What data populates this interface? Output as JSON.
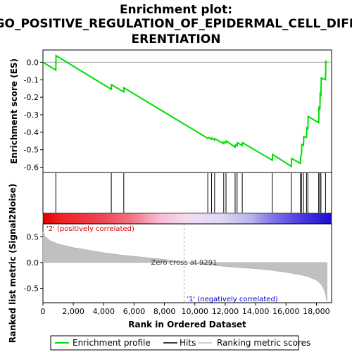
{
  "chart_data": {
    "type": "line",
    "title_lines": [
      "Enrichment plot:",
      "GO_POSITIVE_REGULATION_OF_EPIDERMAL_CELL_DIFF",
      "ERENTIATION"
    ],
    "xlabel": "Rank in Ordered Dataset",
    "es_panel": {
      "ylabel": "Enrichment score (ES)",
      "ylim": [
        -0.63,
        0.07
      ],
      "yticks": [
        0.0,
        -0.1,
        -0.2,
        -0.3,
        -0.4,
        -0.5,
        -0.6
      ],
      "ytick_labels": [
        "0.0",
        "-0.1",
        "-0.2",
        "-0.3",
        "-0.4",
        "-0.5",
        "-0.6"
      ],
      "series": [
        {
          "name": "Enrichment profile",
          "color": "#00dd00",
          "points": [
            [
              0,
              0.0
            ],
            [
              850,
              -0.045
            ],
            [
              860,
              0.038
            ],
            [
              4500,
              -0.155
            ],
            [
              4510,
              -0.128
            ],
            [
              5320,
              -0.17
            ],
            [
              5330,
              -0.146
            ],
            [
              10850,
              -0.435
            ],
            [
              10900,
              -0.43
            ],
            [
              11100,
              -0.44
            ],
            [
              11130,
              -0.433
            ],
            [
              11300,
              -0.445
            ],
            [
              11320,
              -0.437
            ],
            [
              11900,
              -0.465
            ],
            [
              11920,
              -0.455
            ],
            [
              12050,
              -0.46
            ],
            [
              12070,
              -0.45
            ],
            [
              12650,
              -0.485
            ],
            [
              12670,
              -0.472
            ],
            [
              12780,
              -0.478
            ],
            [
              12800,
              -0.46
            ],
            [
              13120,
              -0.475
            ],
            [
              13140,
              -0.46
            ],
            [
              15100,
              -0.56
            ],
            [
              15120,
              -0.527
            ],
            [
              16350,
              -0.595
            ],
            [
              16370,
              -0.55
            ],
            [
              16950,
              -0.578
            ],
            [
              16970,
              -0.535
            ],
            [
              17020,
              -0.53
            ],
            [
              17040,
              -0.47
            ],
            [
              17150,
              -0.475
            ],
            [
              17170,
              -0.425
            ],
            [
              17350,
              -0.43
            ],
            [
              17370,
              -0.375
            ],
            [
              17440,
              -0.38
            ],
            [
              17460,
              -0.31
            ],
            [
              18150,
              -0.345
            ],
            [
              18170,
              -0.26
            ],
            [
              18230,
              -0.265
            ],
            [
              18250,
              -0.18
            ],
            [
              18300,
              -0.185
            ],
            [
              18320,
              -0.09
            ],
            [
              18600,
              -0.1
            ],
            [
              18620,
              0.005
            ],
            [
              18700,
              0.0
            ]
          ]
        }
      ]
    },
    "hits": [
      850,
      4500,
      5320,
      10850,
      11100,
      11300,
      11900,
      12050,
      12650,
      12780,
      13120,
      15100,
      16350,
      16950,
      17020,
      17150,
      17350,
      17440,
      18150,
      18230,
      18300,
      18600
    ],
    "ranking_panel": {
      "ylabel": "Ranked list metric (Signal2Noise)",
      "ylim": [
        -0.78,
        0.75
      ],
      "yticks": [
        0.5,
        0.0,
        -0.5
      ],
      "ytick_labels": [
        "0.5",
        "0.0",
        "-0.5"
      ],
      "zero_cross_rank": 9291,
      "zero_cross_label": "Zero cross at 9291",
      "label_positive": "'2' (positively correlated)",
      "label_negative": "'1' (negatively correlated)",
      "color_positive": "#dd0000",
      "color_negative": "#0000cc",
      "metric_points": [
        [
          0,
          0.6
        ],
        [
          150,
          0.5
        ],
        [
          500,
          0.42
        ],
        [
          1000,
          0.36
        ],
        [
          2000,
          0.29
        ],
        [
          3000,
          0.24
        ],
        [
          4000,
          0.19
        ],
        [
          5000,
          0.15
        ],
        [
          6000,
          0.12
        ],
        [
          7000,
          0.09
        ],
        [
          8000,
          0.06
        ],
        [
          9291,
          0.0
        ],
        [
          10000,
          -0.02
        ],
        [
          11000,
          -0.05
        ],
        [
          12000,
          -0.075
        ],
        [
          13000,
          -0.1
        ],
        [
          14000,
          -0.12
        ],
        [
          15000,
          -0.15
        ],
        [
          16000,
          -0.19
        ],
        [
          17000,
          -0.24
        ],
        [
          17500,
          -0.28
        ],
        [
          18000,
          -0.34
        ],
        [
          18300,
          -0.42
        ],
        [
          18500,
          -0.52
        ],
        [
          18600,
          -0.62
        ],
        [
          18700,
          -0.76
        ]
      ]
    },
    "x_axis": {
      "xlim": [
        0,
        19000
      ],
      "xticks": [
        0,
        2000,
        4000,
        6000,
        8000,
        10000,
        12000,
        14000,
        16000,
        18000
      ],
      "xtick_labels": [
        "0",
        "2,000",
        "4,000",
        "6,000",
        "8,000",
        "10,000",
        "12,000",
        "14,000",
        "16,000",
        "18,000"
      ]
    },
    "legend": {
      "placement": "bottom",
      "entries": [
        {
          "label": "Enrichment profile",
          "color": "#00dd00"
        },
        {
          "label": "Hits",
          "color": "#000000"
        },
        {
          "label": "Ranking metric scores",
          "color": "#c0c0c0"
        }
      ]
    }
  }
}
